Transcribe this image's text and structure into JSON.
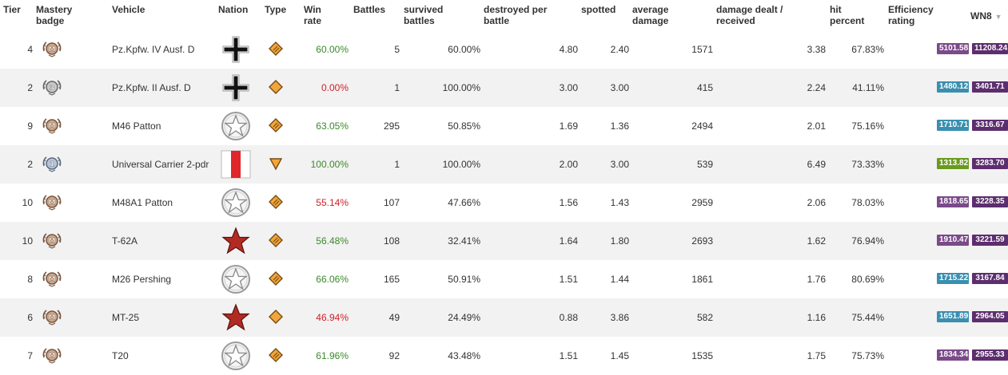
{
  "headers": {
    "tier": "Tier",
    "mastery_l1": "Mastery",
    "mastery_l2": "badge",
    "vehicle": "Vehicle",
    "nation": "Nation",
    "type": "Type",
    "win_l1": "Win",
    "win_l2": "rate",
    "battles": "Battles",
    "survived_l1": "survived",
    "survived_l2": "battles",
    "destroyed_l1": "destroyed per",
    "destroyed_l2": "battle",
    "spotted": "spotted",
    "avgdmg_l1": "average",
    "avgdmg_l2": "damage",
    "dmgratio_l1": "damage dealt /",
    "dmgratio_l2": "received",
    "hit_l1": "hit",
    "hit_l2": "percent",
    "eff_l1": "Efficiency",
    "eff_l2": "rating",
    "wn8": "WN8",
    "sort_icon": "▼"
  },
  "colors": {
    "positive": "#3a8a2a",
    "negative": "#d0202a",
    "purple": "#7b4a8a",
    "dark_purple": "#5d2e6e",
    "blue": "#3a8fb0",
    "green": "#6a9a1f"
  },
  "rows": [
    {
      "tier": "4",
      "mastery": "M",
      "vehicle": "Pz.Kpfw. IV Ausf. D",
      "nation": "germany-cross-icon",
      "type": "medium-tank-icon",
      "win_rate": "60.00%",
      "win_class": "pos",
      "battles": "5",
      "survived": "60.00%",
      "destroyed": "4.80",
      "spotted": "2.40",
      "avg_damage": "1571",
      "dmg_ratio": "3.38",
      "hit_percent": "67.83%",
      "eff": "5101.58",
      "eff_color": "purple",
      "wn8": "11208.24",
      "wn8_color": "dark_purple"
    },
    {
      "tier": "2",
      "mastery": "3",
      "vehicle": "Pz.Kpfw. II Ausf. D",
      "nation": "germany-cross-icon",
      "type": "light-tank-icon",
      "win_rate": "0.00%",
      "win_class": "neg",
      "battles": "1",
      "survived": "100.00%",
      "destroyed": "3.00",
      "spotted": "3.00",
      "avg_damage": "415",
      "dmg_ratio": "2.24",
      "hit_percent": "41.11%",
      "eff": "1480.12",
      "eff_color": "blue",
      "wn8": "3401.71",
      "wn8_color": "dark_purple"
    },
    {
      "tier": "9",
      "mastery": "M",
      "vehicle": "M46 Patton",
      "nation": "usa-star-icon",
      "type": "medium-tank-icon",
      "win_rate": "63.05%",
      "win_class": "pos",
      "battles": "295",
      "survived": "50.85%",
      "destroyed": "1.69",
      "spotted": "1.36",
      "avg_damage": "2494",
      "dmg_ratio": "2.01",
      "hit_percent": "75.16%",
      "eff": "1710.71",
      "eff_color": "blue",
      "wn8": "3316.67",
      "wn8_color": "dark_purple"
    },
    {
      "tier": "2",
      "mastery": "1",
      "vehicle": "Universal Carrier 2-pdr",
      "nation": "uk-flag-icon",
      "type": "tank-destroyer-icon",
      "win_rate": "100.00%",
      "win_class": "pos",
      "battles": "1",
      "survived": "100.00%",
      "destroyed": "2.00",
      "spotted": "3.00",
      "avg_damage": "539",
      "dmg_ratio": "6.49",
      "hit_percent": "73.33%",
      "eff": "1313.82",
      "eff_color": "green",
      "wn8": "3283.70",
      "wn8_color": "dark_purple"
    },
    {
      "tier": "10",
      "mastery": "M",
      "vehicle": "M48A1 Patton",
      "nation": "usa-star-icon",
      "type": "medium-tank-icon",
      "win_rate": "55.14%",
      "win_class": "neg",
      "battles": "107",
      "survived": "47.66%",
      "destroyed": "1.56",
      "spotted": "1.43",
      "avg_damage": "2959",
      "dmg_ratio": "2.06",
      "hit_percent": "78.03%",
      "eff": "1818.65",
      "eff_color": "purple",
      "wn8": "3228.35",
      "wn8_color": "dark_purple"
    },
    {
      "tier": "10",
      "mastery": "M",
      "vehicle": "T-62A",
      "nation": "ussr-star-icon",
      "type": "medium-tank-icon",
      "win_rate": "56.48%",
      "win_class": "pos",
      "battles": "108",
      "survived": "32.41%",
      "destroyed": "1.64",
      "spotted": "1.80",
      "avg_damage": "2693",
      "dmg_ratio": "1.62",
      "hit_percent": "76.94%",
      "eff": "1910.47",
      "eff_color": "purple",
      "wn8": "3221.59",
      "wn8_color": "dark_purple"
    },
    {
      "tier": "8",
      "mastery": "M",
      "vehicle": "M26 Pershing",
      "nation": "usa-star-icon",
      "type": "medium-tank-icon",
      "win_rate": "66.06%",
      "win_class": "pos",
      "battles": "165",
      "survived": "50.91%",
      "destroyed": "1.51",
      "spotted": "1.44",
      "avg_damage": "1861",
      "dmg_ratio": "1.76",
      "hit_percent": "80.69%",
      "eff": "1715.22",
      "eff_color": "blue",
      "wn8": "3167.84",
      "wn8_color": "dark_purple"
    },
    {
      "tier": "6",
      "mastery": "M",
      "vehicle": "MT-25",
      "nation": "ussr-star-icon",
      "type": "light-tank-icon",
      "win_rate": "46.94%",
      "win_class": "neg",
      "battles": "49",
      "survived": "24.49%",
      "destroyed": "0.88",
      "spotted": "3.86",
      "avg_damage": "582",
      "dmg_ratio": "1.16",
      "hit_percent": "75.44%",
      "eff": "1651.89",
      "eff_color": "blue",
      "wn8": "2964.05",
      "wn8_color": "dark_purple"
    },
    {
      "tier": "7",
      "mastery": "M",
      "vehicle": "T20",
      "nation": "usa-star-icon",
      "type": "medium-tank-icon",
      "win_rate": "61.96%",
      "win_class": "pos",
      "battles": "92",
      "survived": "43.48%",
      "destroyed": "1.51",
      "spotted": "1.45",
      "avg_damage": "1535",
      "dmg_ratio": "1.75",
      "hit_percent": "75.73%",
      "eff": "1834.34",
      "eff_color": "purple",
      "wn8": "2955.33",
      "wn8_color": "dark_purple"
    }
  ]
}
